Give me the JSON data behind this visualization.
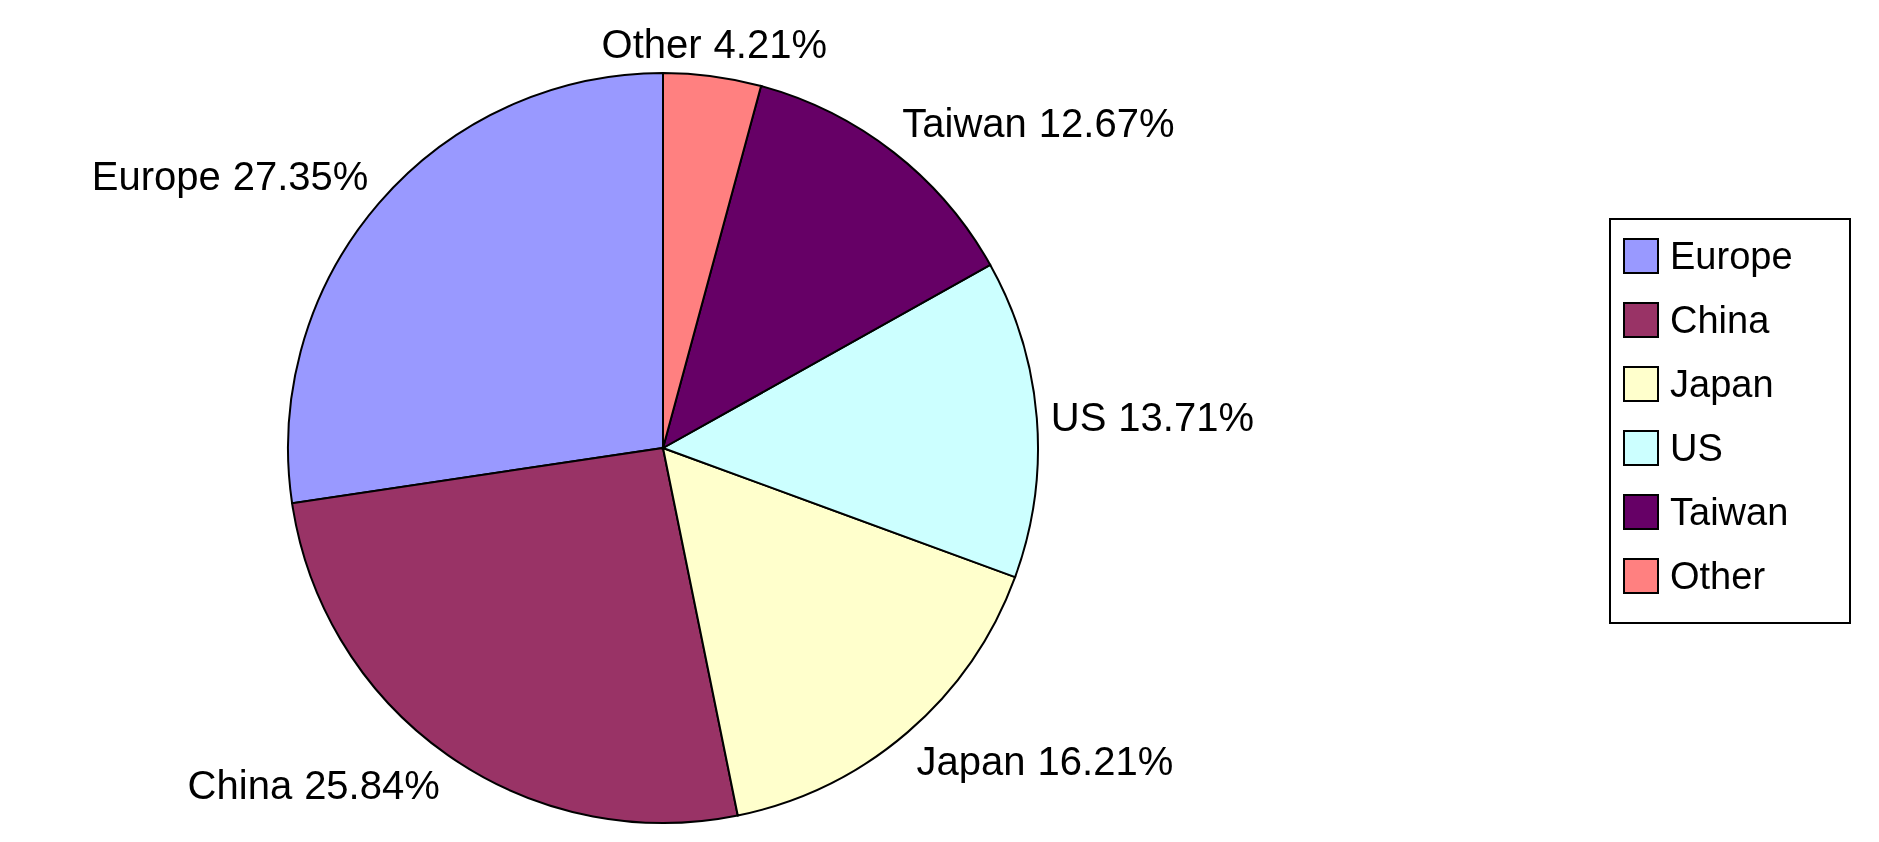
{
  "chart_data": {
    "type": "pie",
    "categories": [
      "Europe",
      "China",
      "Japan",
      "US",
      "Taiwan",
      "Other"
    ],
    "values": [
      27.35,
      25.84,
      16.21,
      13.71,
      12.67,
      4.21
    ],
    "value_labels": [
      "27.35%",
      "25.84%",
      "16.21%",
      "13.71%",
      "12.67%",
      "4.21%"
    ],
    "colors": [
      "#9999ff",
      "#993366",
      "#ffffcc",
      "#ccffff",
      "#660066",
      "#ff8080"
    ],
    "legend": "right"
  }
}
